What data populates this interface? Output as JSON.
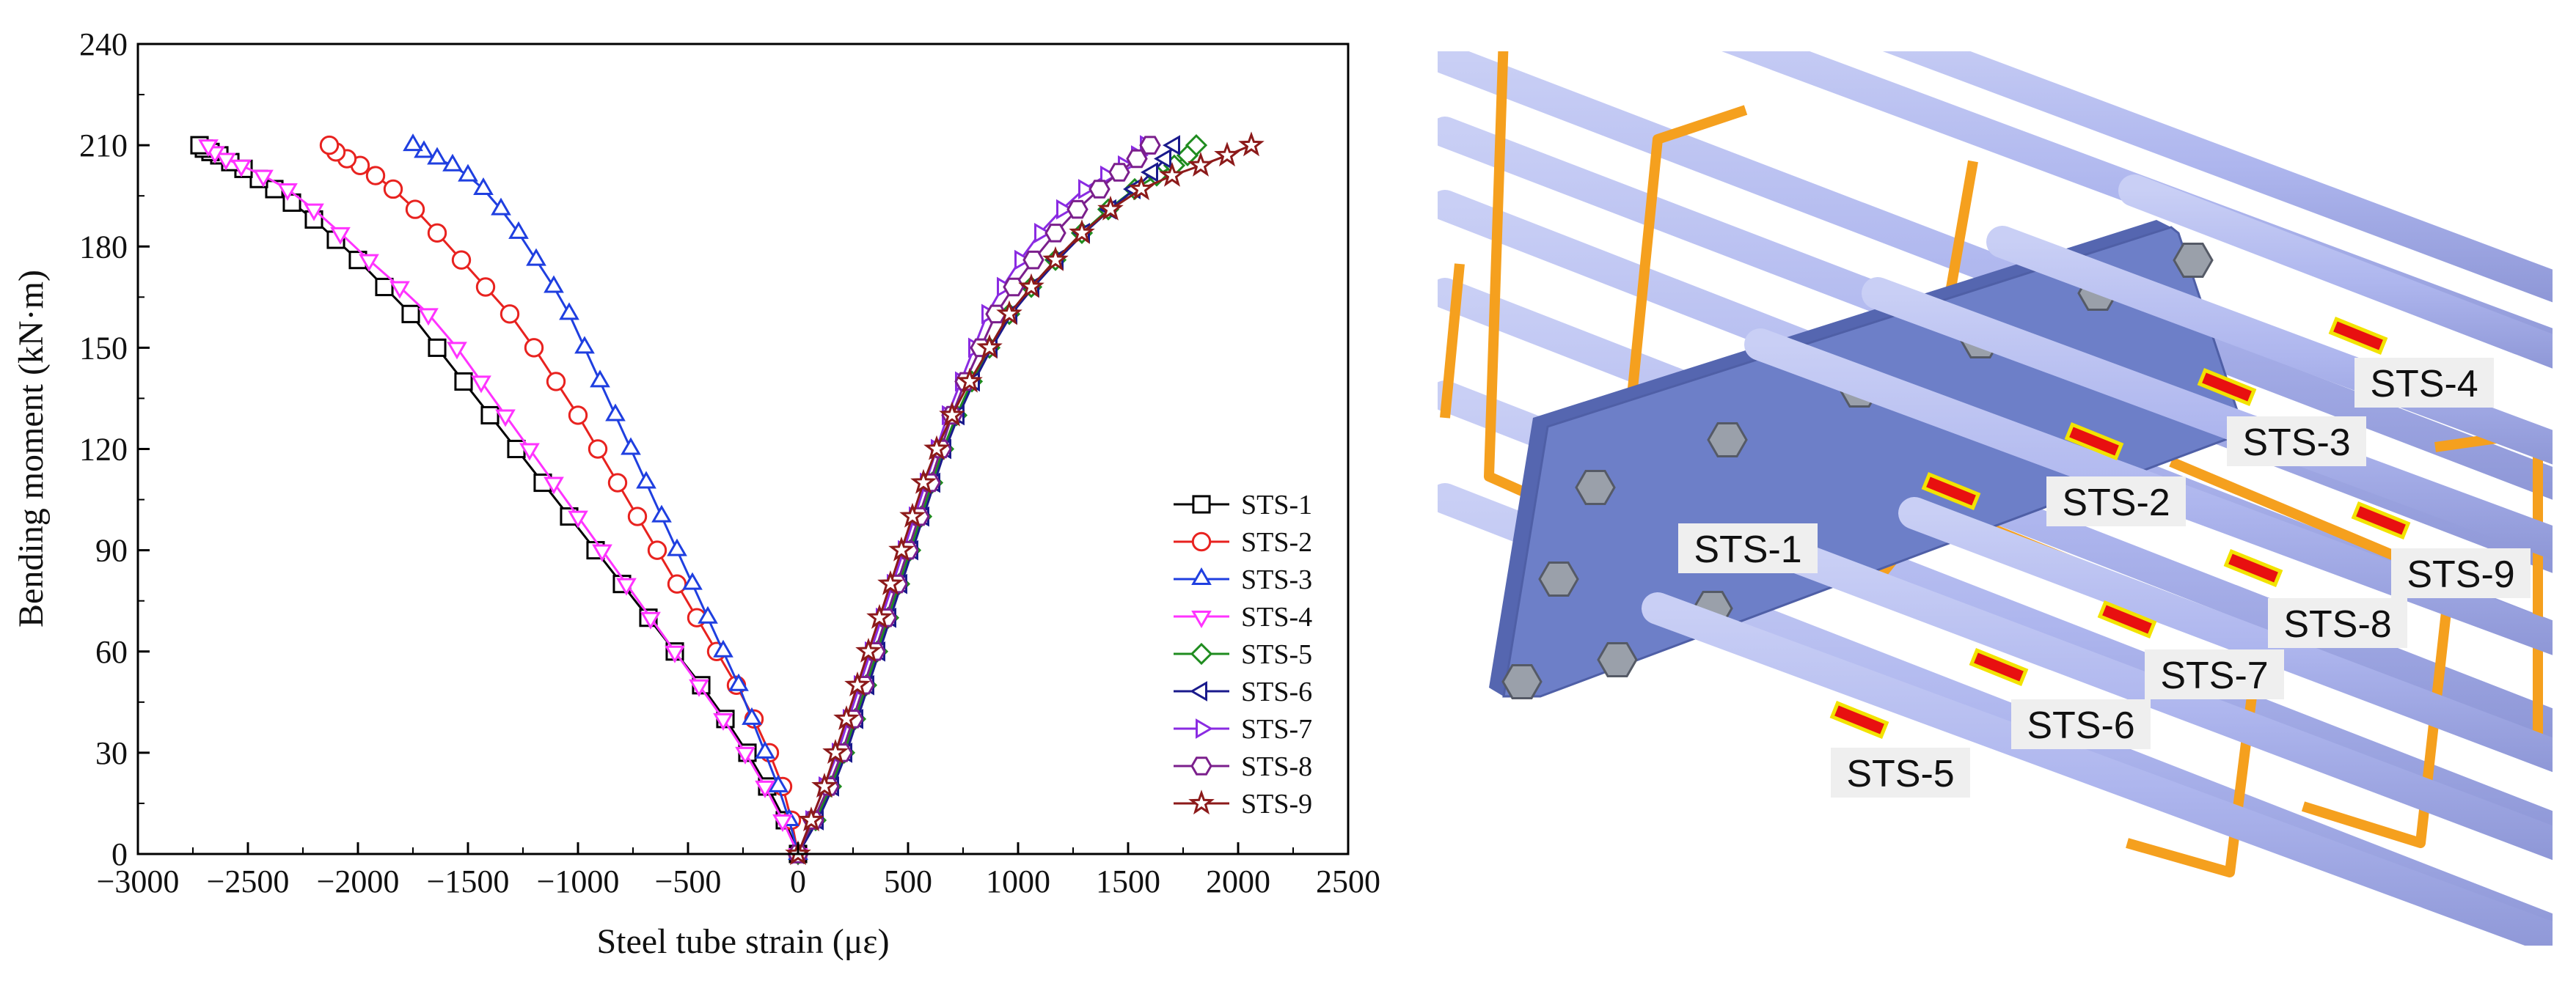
{
  "chart_data": {
    "type": "line",
    "title": "",
    "xlabel": "Steel tube strain (με)",
    "ylabel": "Bending moment (kN·m)",
    "xlim": [
      -3000,
      2500
    ],
    "ylim": [
      0,
      240
    ],
    "xticks": [
      -3000,
      -2500,
      -2000,
      -1500,
      -1000,
      -500,
      0,
      500,
      1000,
      1500,
      2000,
      2500
    ],
    "xtick_labels": [
      "−3000",
      "−2500",
      "−2000",
      "−1500",
      "−1000",
      "−500",
      "0",
      "500",
      "1000",
      "1500",
      "2000",
      "2500"
    ],
    "yticks": [
      0,
      30,
      60,
      90,
      120,
      150,
      180,
      210,
      240
    ],
    "ytick_labels": [
      "0",
      "30",
      "60",
      "90",
      "120",
      "150",
      "180",
      "210",
      "240"
    ],
    "grid": false,
    "legend_position": "bottom-right",
    "series": [
      {
        "name": "STS-1",
        "color": "#000000",
        "marker": "square",
        "x": [
          0,
          -60,
          -140,
          -230,
          -330,
          -440,
          -560,
          -680,
          -800,
          -920,
          -1040,
          -1160,
          -1280,
          -1400,
          -1520,
          -1640,
          -1760,
          -1880,
          -2000,
          -2100,
          -2200,
          -2300,
          -2380,
          -2450,
          -2520,
          -2580,
          -2630,
          -2670,
          -2700,
          -2720
        ],
        "y": [
          0,
          10,
          20,
          30,
          40,
          50,
          60,
          70,
          80,
          90,
          100,
          110,
          120,
          130,
          140,
          150,
          160,
          168,
          176,
          182,
          188,
          193,
          197,
          200,
          203,
          205,
          207,
          208,
          209,
          210
        ]
      },
      {
        "name": "STS-2",
        "color": "#e8221f",
        "marker": "circle",
        "x": [
          0,
          -30,
          -70,
          -130,
          -200,
          -280,
          -370,
          -460,
          -550,
          -640,
          -730,
          -820,
          -910,
          -1000,
          -1100,
          -1200,
          -1310,
          -1420,
          -1530,
          -1640,
          -1740,
          -1840,
          -1920,
          -1990,
          -2050,
          -2100,
          -2130
        ],
        "y": [
          0,
          10,
          20,
          30,
          40,
          50,
          60,
          70,
          80,
          90,
          100,
          110,
          120,
          130,
          140,
          150,
          160,
          168,
          176,
          184,
          191,
          197,
          201,
          204,
          206,
          208,
          210
        ]
      },
      {
        "name": "STS-3",
        "color": "#1f3fe0",
        "marker": "triangle-up",
        "x": [
          0,
          -40,
          -90,
          -150,
          -210,
          -270,
          -340,
          -410,
          -480,
          -550,
          -620,
          -690,
          -760,
          -830,
          -900,
          -970,
          -1040,
          -1110,
          -1190,
          -1270,
          -1350,
          -1430,
          -1500,
          -1570,
          -1640,
          -1700,
          -1750
        ],
        "y": [
          0,
          10,
          20,
          30,
          40,
          50,
          60,
          70,
          80,
          90,
          100,
          110,
          120,
          130,
          140,
          150,
          160,
          168,
          176,
          184,
          191,
          197,
          201,
          204,
          206,
          208,
          210
        ]
      },
      {
        "name": "STS-4",
        "color": "#ff33ff",
        "marker": "triangle-down",
        "x": [
          0,
          -70,
          -150,
          -240,
          -340,
          -450,
          -560,
          -670,
          -780,
          -890,
          -1000,
          -1110,
          -1220,
          -1330,
          -1440,
          -1550,
          -1680,
          -1810,
          -1950,
          -2080,
          -2200,
          -2320,
          -2430,
          -2530,
          -2600,
          -2650,
          -2680
        ],
        "y": [
          0,
          10,
          20,
          30,
          40,
          50,
          60,
          70,
          80,
          90,
          100,
          110,
          120,
          130,
          140,
          150,
          160,
          168,
          176,
          184,
          191,
          197,
          201,
          204,
          206,
          208,
          210
        ]
      },
      {
        "name": "STS-5",
        "color": "#1f8c1f",
        "marker": "diamond",
        "x": [
          0,
          80,
          150,
          210,
          260,
          310,
          360,
          410,
          460,
          510,
          560,
          610,
          660,
          720,
          790,
          870,
          960,
          1060,
          1170,
          1290,
          1410,
          1530,
          1630,
          1710,
          1770,
          1810
        ],
        "y": [
          0,
          10,
          20,
          30,
          40,
          50,
          60,
          70,
          80,
          90,
          100,
          110,
          120,
          130,
          140,
          150,
          160,
          168,
          176,
          184,
          191,
          197,
          201,
          204,
          207,
          210
        ]
      },
      {
        "name": "STS-6",
        "color": "#1a1a8c",
        "marker": "triangle-left",
        "x": [
          0,
          90,
          160,
          220,
          270,
          320,
          370,
          420,
          470,
          520,
          570,
          620,
          670,
          730,
          800,
          880,
          970,
          1070,
          1180,
          1300,
          1420,
          1530,
          1610,
          1670,
          1710
        ],
        "y": [
          0,
          10,
          20,
          30,
          40,
          50,
          60,
          70,
          80,
          90,
          100,
          110,
          120,
          130,
          140,
          150,
          160,
          168,
          176,
          184,
          191,
          197,
          202,
          206,
          210
        ]
      },
      {
        "name": "STS-7",
        "color": "#8a2be2",
        "marker": "triangle-right",
        "x": [
          0,
          60,
          120,
          180,
          230,
          280,
          330,
          380,
          430,
          480,
          530,
          580,
          630,
          680,
          740,
          800,
          860,
          930,
          1010,
          1100,
          1200,
          1300,
          1400,
          1480,
          1540,
          1580
        ],
        "y": [
          0,
          10,
          20,
          30,
          40,
          50,
          60,
          70,
          80,
          90,
          100,
          110,
          120,
          130,
          140,
          150,
          160,
          168,
          176,
          184,
          191,
          197,
          201,
          204,
          207,
          210
        ]
      },
      {
        "name": "STS-8",
        "color": "#7b1f8c",
        "marker": "hexagon",
        "x": [
          0,
          70,
          140,
          200,
          250,
          300,
          350,
          400,
          450,
          500,
          550,
          600,
          650,
          700,
          760,
          830,
          900,
          980,
          1070,
          1170,
          1270,
          1370,
          1460,
          1540,
          1600
        ],
        "y": [
          0,
          10,
          20,
          30,
          40,
          50,
          60,
          70,
          80,
          90,
          100,
          110,
          120,
          130,
          140,
          150,
          160,
          168,
          176,
          184,
          191,
          197,
          202,
          206,
          210
        ]
      },
      {
        "name": "STS-9",
        "color": "#8c1a1a",
        "marker": "star",
        "x": [
          0,
          60,
          120,
          170,
          220,
          270,
          320,
          370,
          420,
          470,
          520,
          570,
          630,
          700,
          780,
          870,
          960,
          1060,
          1170,
          1290,
          1420,
          1560,
          1700,
          1830,
          1950,
          2060
        ],
        "y": [
          0,
          10,
          20,
          30,
          40,
          50,
          60,
          70,
          80,
          90,
          100,
          110,
          120,
          130,
          140,
          150,
          160,
          168,
          176,
          184,
          191,
          197,
          201,
          204,
          207,
          210
        ]
      }
    ]
  },
  "scene": {
    "tube_color": "#aeb6ee",
    "tube_edge_color": "#8890d0",
    "stirrup_color": "#f5a01e",
    "plate_color": "#6d7fc8",
    "bolt_color": "#9aa0aa",
    "gauge_color": "#e81010",
    "gauge_border_color": "#f2e300",
    "labels": [
      {
        "id": "sts-1",
        "text": "STS-1"
      },
      {
        "id": "sts-2",
        "text": "STS-2"
      },
      {
        "id": "sts-3",
        "text": "STS-3"
      },
      {
        "id": "sts-4",
        "text": "STS-4"
      },
      {
        "id": "sts-5",
        "text": "STS-5"
      },
      {
        "id": "sts-6",
        "text": "STS-6"
      },
      {
        "id": "sts-7",
        "text": "STS-7"
      },
      {
        "id": "sts-8",
        "text": "STS-8"
      },
      {
        "id": "sts-9",
        "text": "STS-9"
      }
    ]
  }
}
